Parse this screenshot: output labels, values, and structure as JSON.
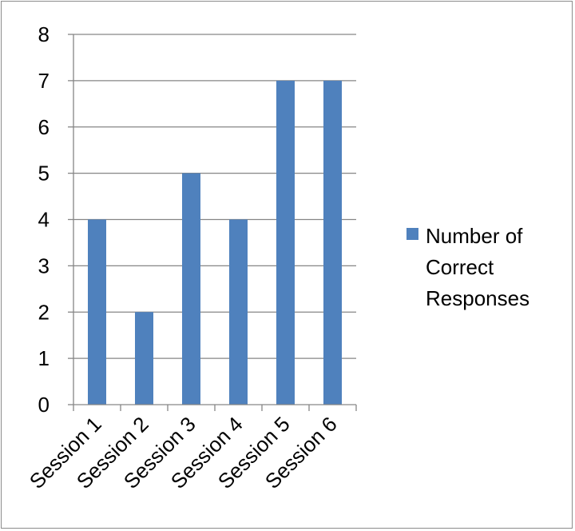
{
  "chart_data": {
    "type": "bar",
    "categories": [
      "Session 1",
      "Session 2",
      "Session 3",
      "Session 4",
      "Session 5",
      "Session 6"
    ],
    "series": [
      {
        "name": "Number of Correct Responses",
        "values": [
          4,
          2,
          5,
          4,
          7,
          7
        ],
        "color": "#4f81bd"
      }
    ],
    "ylim": [
      0,
      8
    ],
    "yticks": [
      0,
      1,
      2,
      3,
      4,
      5,
      6,
      7,
      8
    ],
    "grid": true,
    "legend_position": "right",
    "legend_lines": [
      "Number of",
      "Correct",
      "Responses"
    ]
  }
}
